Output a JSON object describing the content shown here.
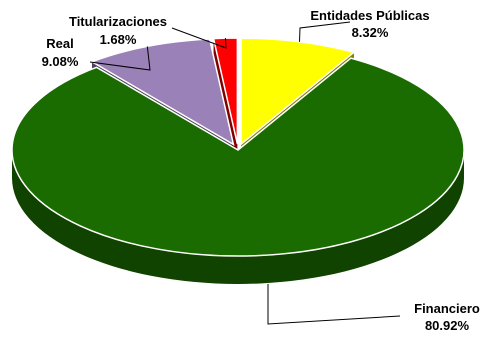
{
  "chart_data": {
    "type": "pie",
    "three_d": true,
    "start_angle_deg": 0,
    "direction": "clockwise",
    "slices": [
      {
        "label": "Entidades Públicas",
        "value": 8.32,
        "value_label": "8.32%",
        "color": "#ffff00",
        "exploded": true
      },
      {
        "label": "Financiero",
        "value": 80.92,
        "value_label": "80.92%",
        "color": "#1a6b00",
        "exploded": false
      },
      {
        "label": "Real",
        "value": 9.08,
        "value_label": "9.08%",
        "color": "#9a82b8",
        "exploded": true
      },
      {
        "label": "Titularizaciones",
        "value": 1.68,
        "value_label": "1.68%",
        "color": "#ff0000",
        "exploded": true
      }
    ],
    "legend": "none",
    "data_labels": "outside with leader lines"
  }
}
